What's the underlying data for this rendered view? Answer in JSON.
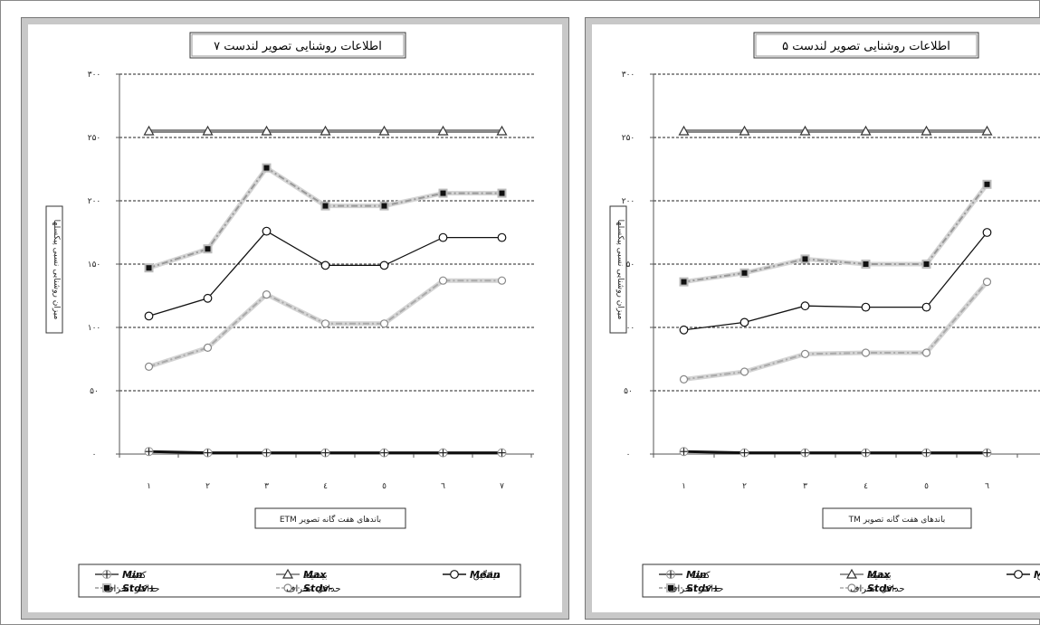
{
  "chart_data": [
    {
      "type": "line",
      "title": "اطلاعات روشنایی تصویر لندست ۷",
      "xlabel": "باندهای هفت گانه تصویر ETM",
      "ylabel": "میزان روشنایی نسبی پیکسلها",
      "categories": [
        "۱",
        "۲",
        "۳",
        "٤",
        "٥",
        "٦",
        "۷"
      ],
      "yticks": [
        "۰",
        "۵۰",
        "۱۰۰",
        "۱۵۰",
        "۲۰۰",
        "۲۵۰",
        "۳۰۰"
      ],
      "ylim": [
        0,
        300
      ],
      "grid": true,
      "legend_position": "bottom",
      "series": [
        {
          "key": "min",
          "name": "Min",
          "label": "کمینه",
          "values": [
            2,
            1,
            1,
            1,
            1,
            1,
            1
          ]
        },
        {
          "key": "max",
          "name": "Max",
          "label": "بیشینه",
          "values": [
            255,
            255,
            255,
            255,
            255,
            255,
            255
          ]
        },
        {
          "key": "mean",
          "name": "Mean",
          "label": "میانگین",
          "values": [
            109,
            123,
            176,
            149,
            149,
            171,
            171
          ]
        },
        {
          "key": "plus",
          "name": "Stdv+",
          "label": "حداکثر انحراف",
          "values": [
            147,
            162,
            226,
            196,
            196,
            206,
            206
          ]
        },
        {
          "key": "minus",
          "name": "Stdv-",
          "label": "حداقل انحراف",
          "values": [
            69,
            84,
            126,
            103,
            103,
            137,
            137
          ]
        }
      ]
    },
    {
      "type": "line",
      "title": "اطلاعات روشنایی تصویر لندست ۵",
      "xlabel": "باندهای هفت گانه تصویر TM",
      "ylabel": "میزان روشنایی نسبی پیکسلها",
      "categories": [
        "۱",
        "۲",
        "۳",
        "٤",
        "٥",
        "٦"
      ],
      "yticks": [
        "۰",
        "۵۰",
        "۱۰۰",
        "۱۵۰",
        "۲۰۰",
        "۲۵۰",
        "۳۰۰"
      ],
      "ylim": [
        0,
        300
      ],
      "grid": true,
      "legend_position": "bottom",
      "series": [
        {
          "key": "min",
          "name": "Min",
          "label": "کمینه",
          "values": [
            2,
            1,
            1,
            1,
            1,
            1
          ]
        },
        {
          "key": "max",
          "name": "Max",
          "label": "بیشینه",
          "values": [
            255,
            255,
            255,
            255,
            255,
            255
          ]
        },
        {
          "key": "mean",
          "name": "Mean",
          "label": "میانگین",
          "values": [
            98,
            104,
            117,
            116,
            116,
            175
          ]
        },
        {
          "key": "plus",
          "name": "Stdv+",
          "label": "حداکثر انحراف",
          "values": [
            136,
            143,
            154,
            150,
            150,
            213
          ]
        },
        {
          "key": "minus",
          "name": "Stdv-",
          "label": "حداقل انحراف",
          "values": [
            59,
            65,
            79,
            80,
            80,
            136
          ]
        }
      ]
    }
  ]
}
